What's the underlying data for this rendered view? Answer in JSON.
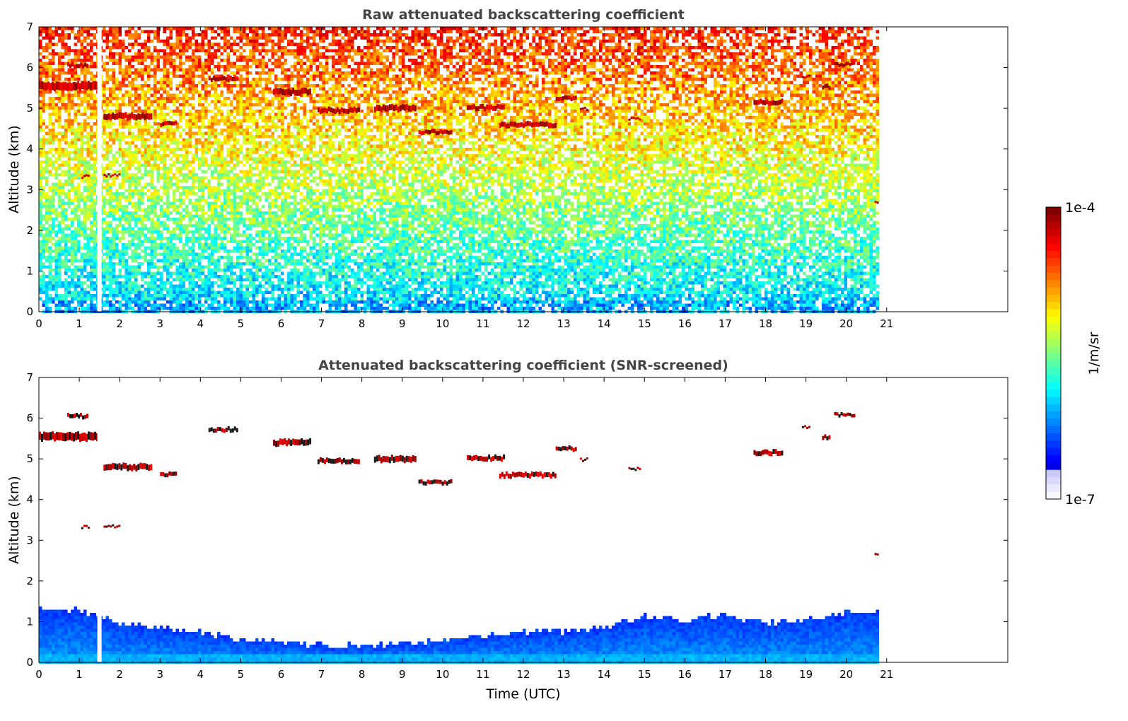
{
  "chart_data": [
    {
      "type": "heatmap",
      "title": "Raw attenuated backscattering coefficient",
      "xlabel": "",
      "ylabel": "Altitude (km)",
      "xlim": [
        0,
        24
      ],
      "ylim": [
        0,
        7
      ],
      "xticks": [
        "0",
        "1",
        "2",
        "3",
        "4",
        "5",
        "6",
        "7",
        "8",
        "9",
        "10",
        "11",
        "12",
        "13",
        "14",
        "15",
        "16",
        "17",
        "18",
        "19",
        "20",
        "21"
      ],
      "yticks": [
        "0",
        "1",
        "2",
        "3",
        "4",
        "5",
        "6",
        "7"
      ],
      "data_end_time": 20.8,
      "gap_time": 1.5,
      "grid": false,
      "clouds": [
        {
          "t0": 0.0,
          "t1": 1.45,
          "z": 5.55,
          "dz": 0.2
        },
        {
          "t0": 0.7,
          "t1": 1.2,
          "z": 6.05,
          "dz": 0.1
        },
        {
          "t0": 1.6,
          "t1": 2.8,
          "z": 4.8,
          "dz": 0.15
        },
        {
          "t0": 3.0,
          "t1": 3.4,
          "z": 4.62,
          "dz": 0.1
        },
        {
          "t0": 1.05,
          "t1": 1.25,
          "z": 3.32,
          "dz": 0.05
        },
        {
          "t0": 1.6,
          "t1": 2.0,
          "z": 3.35,
          "dz": 0.04
        },
        {
          "t0": 4.2,
          "t1": 4.9,
          "z": 5.72,
          "dz": 0.1
        },
        {
          "t0": 5.8,
          "t1": 6.7,
          "z": 5.4,
          "dz": 0.15
        },
        {
          "t0": 6.9,
          "t1": 7.9,
          "z": 4.95,
          "dz": 0.12
        },
        {
          "t0": 8.3,
          "t1": 9.3,
          "z": 5.0,
          "dz": 0.15
        },
        {
          "t0": 9.4,
          "t1": 10.2,
          "z": 4.42,
          "dz": 0.1
        },
        {
          "t0": 10.6,
          "t1": 11.5,
          "z": 5.02,
          "dz": 0.12
        },
        {
          "t0": 11.4,
          "t1": 12.8,
          "z": 4.6,
          "dz": 0.12
        },
        {
          "t0": 12.8,
          "t1": 13.3,
          "z": 5.25,
          "dz": 0.1
        },
        {
          "t0": 13.4,
          "t1": 13.6,
          "z": 4.98,
          "dz": 0.05
        },
        {
          "t0": 14.6,
          "t1": 14.9,
          "z": 4.75,
          "dz": 0.05
        },
        {
          "t0": 17.7,
          "t1": 18.4,
          "z": 5.15,
          "dz": 0.12
        },
        {
          "t0": 18.9,
          "t1": 19.1,
          "z": 5.78,
          "dz": 0.05
        },
        {
          "t0": 19.4,
          "t1": 19.6,
          "z": 5.52,
          "dz": 0.1
        },
        {
          "t0": 19.7,
          "t1": 20.2,
          "z": 6.08,
          "dz": 0.08
        },
        {
          "t0": 20.7,
          "t1": 20.8,
          "z": 2.67,
          "dz": 0.04
        }
      ]
    },
    {
      "type": "heatmap",
      "title": "Attenuated backscattering coefficient (SNR-screened)",
      "xlabel": "Time (UTC)",
      "ylabel": "Altitude (km)",
      "xlim": [
        0,
        24
      ],
      "ylim": [
        0,
        7
      ],
      "xticks": [
        "0",
        "1",
        "2",
        "3",
        "4",
        "5",
        "6",
        "7",
        "8",
        "9",
        "10",
        "11",
        "12",
        "13",
        "14",
        "15",
        "16",
        "17",
        "18",
        "19",
        "20",
        "21"
      ],
      "yticks": [
        "0",
        "1",
        "2",
        "3",
        "4",
        "5",
        "6",
        "7"
      ],
      "data_end_time": 20.8,
      "gap_time": 1.5,
      "grid": false,
      "boundary_layer_top_km": [
        [
          0,
          1.4
        ],
        [
          1,
          1.3
        ],
        [
          2,
          1.0
        ],
        [
          3,
          0.9
        ],
        [
          4,
          0.8
        ],
        [
          5,
          0.6
        ],
        [
          6,
          0.55
        ],
        [
          7,
          0.45
        ],
        [
          8,
          0.45
        ],
        [
          9,
          0.5
        ],
        [
          10,
          0.6
        ],
        [
          11,
          0.7
        ],
        [
          12,
          0.8
        ],
        [
          13,
          0.8
        ],
        [
          14,
          0.9
        ],
        [
          15,
          1.2
        ],
        [
          16,
          1.1
        ],
        [
          17,
          1.2
        ],
        [
          18,
          1.0
        ],
        [
          19,
          1.1
        ],
        [
          20,
          1.3
        ],
        [
          20.8,
          1.3
        ]
      ],
      "clouds": [
        {
          "t0": 0.0,
          "t1": 1.45,
          "z": 5.55,
          "dz": 0.2
        },
        {
          "t0": 0.7,
          "t1": 1.2,
          "z": 6.05,
          "dz": 0.1
        },
        {
          "t0": 1.6,
          "t1": 2.8,
          "z": 4.8,
          "dz": 0.15
        },
        {
          "t0": 3.0,
          "t1": 3.4,
          "z": 4.62,
          "dz": 0.1
        },
        {
          "t0": 1.05,
          "t1": 1.25,
          "z": 3.32,
          "dz": 0.05
        },
        {
          "t0": 1.6,
          "t1": 2.0,
          "z": 3.35,
          "dz": 0.04
        },
        {
          "t0": 4.2,
          "t1": 4.9,
          "z": 5.72,
          "dz": 0.1
        },
        {
          "t0": 5.8,
          "t1": 6.7,
          "z": 5.4,
          "dz": 0.15
        },
        {
          "t0": 6.9,
          "t1": 7.9,
          "z": 4.95,
          "dz": 0.12
        },
        {
          "t0": 8.3,
          "t1": 9.3,
          "z": 5.0,
          "dz": 0.15
        },
        {
          "t0": 9.4,
          "t1": 10.2,
          "z": 4.42,
          "dz": 0.1
        },
        {
          "t0": 10.6,
          "t1": 11.5,
          "z": 5.02,
          "dz": 0.12
        },
        {
          "t0": 11.4,
          "t1": 12.8,
          "z": 4.6,
          "dz": 0.12
        },
        {
          "t0": 12.8,
          "t1": 13.3,
          "z": 5.25,
          "dz": 0.1
        },
        {
          "t0": 13.4,
          "t1": 13.6,
          "z": 4.98,
          "dz": 0.05
        },
        {
          "t0": 14.6,
          "t1": 14.9,
          "z": 4.75,
          "dz": 0.05
        },
        {
          "t0": 17.7,
          "t1": 18.4,
          "z": 5.15,
          "dz": 0.12
        },
        {
          "t0": 18.9,
          "t1": 19.1,
          "z": 5.78,
          "dz": 0.05
        },
        {
          "t0": 19.4,
          "t1": 19.6,
          "z": 5.52,
          "dz": 0.1
        },
        {
          "t0": 19.7,
          "t1": 20.2,
          "z": 6.08,
          "dz": 0.08
        },
        {
          "t0": 20.7,
          "t1": 20.8,
          "z": 2.67,
          "dz": 0.04
        }
      ]
    }
  ],
  "colorbar": {
    "label": "1/m/sr",
    "max_label": "1e-4",
    "min_label": "1e-7",
    "colormap": "jet",
    "scale": "log"
  }
}
